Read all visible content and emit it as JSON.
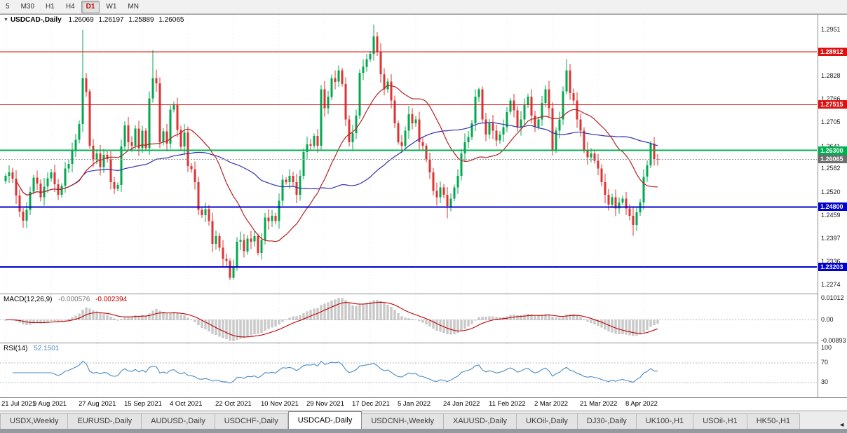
{
  "toolbar": {
    "timeframes": [
      {
        "label": "5",
        "active": false
      },
      {
        "label": "M30",
        "active": false
      },
      {
        "label": "H1",
        "active": false
      },
      {
        "label": "H4",
        "active": false
      },
      {
        "label": "D1",
        "active": true
      },
      {
        "label": "W1",
        "active": false
      },
      {
        "label": "MN",
        "active": false
      }
    ]
  },
  "chart_header": {
    "menu_glyph": "▼",
    "symbol": "USDCAD-,Daily",
    "open": "1.26069",
    "high": "1.26197",
    "low": "1.25889",
    "close": "1.26065"
  },
  "chart_data": {
    "type": "candlestick",
    "symbol": "USDCAD",
    "timeframe": "Daily",
    "current_bar": {
      "open": 1.26069,
      "high": 1.26197,
      "low": 1.25889,
      "close": 1.26065
    },
    "x_labels": [
      "21 Jul 2021",
      "9 Aug 2021",
      "27 Aug 2021",
      "15 Sep 2021",
      "4 Oct 2021",
      "22 Oct 2021",
      "10 Nov 2021",
      "29 Nov 2021",
      "17 Dec 2021",
      "5 Jan 2022",
      "24 Jan 2022",
      "11 Feb 2022",
      "2 Mar 2022",
      "21 Mar 2022",
      "8 Apr 2022"
    ],
    "bars_per_label": 13,
    "first_open": 1.2548,
    "closes": [
      1.2562,
      1.2572,
      1.2555,
      1.251,
      1.2468,
      1.2443,
      1.2472,
      1.252,
      1.2558,
      1.2542,
      1.2506,
      1.2534,
      1.2556,
      1.2572,
      1.254,
      1.2512,
      1.2536,
      1.2582,
      1.2594,
      1.2628,
      1.2658,
      1.27,
      1.2822,
      1.2786,
      1.2642,
      1.2604,
      1.2622,
      1.2586,
      1.2618,
      1.2607,
      1.2546,
      1.2528,
      1.2538,
      1.264,
      1.2696,
      1.2652,
      1.2642,
      1.2688,
      1.2636,
      1.2682,
      1.2636,
      1.2768,
      1.2822,
      1.2808,
      1.2652,
      1.268,
      1.2648,
      1.2738,
      1.2752,
      1.2684,
      1.264,
      1.2678,
      1.2588,
      1.258,
      1.2546,
      1.2472,
      1.2458,
      1.2474,
      1.2442,
      1.2382,
      1.2402,
      1.2372,
      1.2342,
      1.2336,
      1.2292,
      1.2322,
      1.2388,
      1.2392,
      1.2362,
      1.2396,
      1.2388,
      1.2402,
      1.2358,
      1.2392,
      1.2452,
      1.2442,
      1.2456,
      1.2442,
      1.2496,
      1.2552,
      1.2546,
      1.2562,
      1.2546,
      1.2512,
      1.2562,
      1.2626,
      1.2646,
      1.2642,
      1.2668,
      1.2642,
      1.2792,
      1.2742,
      1.2772,
      1.2822,
      1.2812,
      1.2842,
      1.2806,
      1.2712,
      1.2652,
      1.2676,
      1.2722,
      1.2836,
      1.2852,
      1.2872,
      1.2886,
      1.2932,
      1.2892,
      1.2832,
      1.2792,
      1.2812,
      1.2762,
      1.2702,
      1.2652,
      1.2642,
      1.2682,
      1.2726,
      1.2702,
      1.2712,
      1.2652,
      1.2642,
      1.2606,
      1.2572,
      1.2522,
      1.2506,
      1.2532,
      1.2512,
      1.2482,
      1.2502,
      1.2532,
      1.2562,
      1.2622,
      1.2652,
      1.2666,
      1.2702,
      1.2772,
      1.2792,
      1.2712,
      1.2672,
      1.2702,
      1.2682,
      1.2656,
      1.2672,
      1.2692,
      1.2732,
      1.2762,
      1.2736,
      1.2692,
      1.2712,
      1.2752,
      1.2772,
      1.2722,
      1.2692,
      1.2712,
      1.2756,
      1.2792,
      1.2742,
      1.2632,
      1.2682,
      1.2712,
      1.2786,
      1.2842,
      1.2782,
      1.2762,
      1.2712,
      1.2682,
      1.2632,
      1.2612,
      1.2622,
      1.2602,
      1.2582,
      1.2546,
      1.2512,
      1.2486,
      1.2506,
      1.2476,
      1.2492,
      1.2502,
      1.2476,
      1.2456,
      1.2432,
      1.2466,
      1.2492,
      1.256,
      1.259,
      1.2648,
      1.26069,
      1.26065
    ],
    "extremes": [
      {
        "i": 5,
        "low": 1.2425
      },
      {
        "i": 22,
        "high": 1.2949
      },
      {
        "i": 42,
        "high": 1.2896
      },
      {
        "i": 65,
        "low": 1.2287
      },
      {
        "i": 105,
        "high": 1.2964
      },
      {
        "i": 126,
        "low": 1.245
      },
      {
        "i": 135,
        "high": 1.2797
      },
      {
        "i": 160,
        "high": 1.2872
      },
      {
        "i": 179,
        "low": 1.2403
      },
      {
        "i": 186,
        "high": 1.26197,
        "low": 1.25889
      }
    ],
    "price_axis": {
      "min": 1.225,
      "max": 1.299,
      "ticks": [
        "1.2951",
        "1.2828",
        "1.2766",
        "1.2705",
        "1.2641",
        "1.2582",
        "1.2520",
        "1.2459",
        "1.2397",
        "1.2336",
        "1.2274"
      ]
    },
    "level_lines": [
      {
        "value": 1.28912,
        "label": "1.28912",
        "color": "#dd1111",
        "width": 1
      },
      {
        "value": 1.27515,
        "label": "1.27515",
        "color": "#dd1111",
        "width": 1
      },
      {
        "value": 1.263,
        "label": "1.26300",
        "color": "#00b050",
        "width": 2
      },
      {
        "value": 1.248,
        "label": "1.24800",
        "color": "#0000cc",
        "width": 2
      },
      {
        "value": 1.23203,
        "label": "1.23203",
        "color": "#0000cc",
        "width": 2
      }
    ],
    "current_price": {
      "value": 1.26065,
      "label": "1.26065",
      "color": "#6e6e6e"
    },
    "moving_averages": [
      {
        "period": 20,
        "color": "#b82222"
      },
      {
        "period": 50,
        "color": "#3030b0"
      }
    ],
    "macd": {
      "label": "MACD(12,26,9)",
      "value_main": "-0.000576",
      "value_signal": "-0.002394",
      "fast": 12,
      "slow": 26,
      "signal": 9,
      "range": [
        -0.0095,
        0.0107
      ],
      "scale": [
        {
          "value": 0.01012,
          "label": "0.01012"
        },
        {
          "value": 0,
          "label": "0.00"
        },
        {
          "value": -0.00893,
          "label": "-0.00893"
        }
      ]
    },
    "rsi": {
      "label": "RSI(14)",
      "value": "52.1501",
      "period": 14,
      "levels": [
        70,
        30
      ],
      "scale": [
        {
          "value": 100,
          "label": "100"
        },
        {
          "value": 70,
          "label": "70"
        },
        {
          "value": 30,
          "label": "30"
        }
      ]
    },
    "colors": {
      "up": "#00a84f",
      "down": "#e03232",
      "macd_hist": "#c9c9c9",
      "macd_hist_edge": "#ababab",
      "macd_signal": "#c00000",
      "rsi_line": "#4a8bc4",
      "grid": "#e7e7ee"
    }
  },
  "tab_bar": {
    "scroll_left_glyph": "◄",
    "tabs": [
      {
        "label": "USDX,Weekly",
        "active": false
      },
      {
        "label": "EURUSD-,Daily",
        "active": false
      },
      {
        "label": "AUDUSD-,Daily",
        "active": false
      },
      {
        "label": "USDCHF-,Daily",
        "active": false
      },
      {
        "label": "USDCAD-,Daily",
        "active": true
      },
      {
        "label": "USDCNH-,Weekly",
        "active": false
      },
      {
        "label": "XAUUSD-,Daily",
        "active": false
      },
      {
        "label": "UKOil-,Daily",
        "active": false
      },
      {
        "label": "DJ30-,Daily",
        "active": false
      },
      {
        "label": "UK100-,H1",
        "active": false
      },
      {
        "label": "USOil-,H1",
        "active": false
      },
      {
        "label": "HK50-,H1",
        "active": false
      }
    ]
  }
}
